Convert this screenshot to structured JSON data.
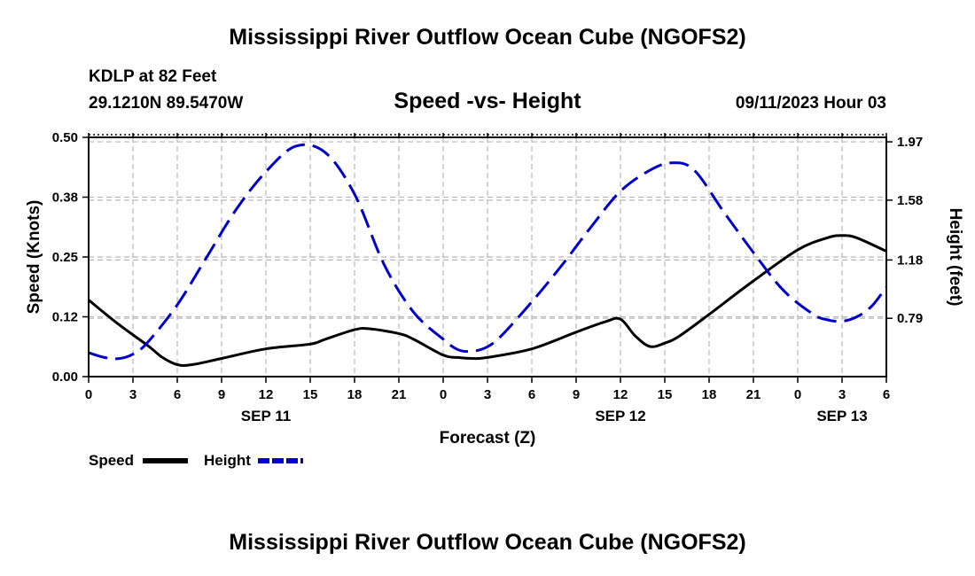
{
  "header": {
    "title": "Mississippi River Outflow Ocean Cube (NGOFS2)",
    "station": "KDLP at 82 Feet",
    "coords": "29.1210N  89.5470W",
    "subtitle": "Speed -vs- Height",
    "datetime": "09/11/2023 Hour 03"
  },
  "footer": {
    "title": "Mississippi River Outflow Ocean Cube (NGOFS2)"
  },
  "chart_data": {
    "type": "line",
    "xlabel": "Forecast (Z)",
    "ylabel_left": "Speed (Knots)",
    "ylabel_right": "Height (feet)",
    "x_range_hours": [
      0,
      54
    ],
    "x_tick_step_hours": 3,
    "x_tick_labels": [
      "0",
      "3",
      "6",
      "9",
      "12",
      "15",
      "18",
      "21",
      "0",
      "3",
      "6",
      "9",
      "12",
      "15",
      "18",
      "21",
      "0",
      "3",
      "6"
    ],
    "day_labels": [
      {
        "label": "SEP 11",
        "hour": 12
      },
      {
        "label": "SEP 12",
        "hour": 36
      },
      {
        "label": "SEP 13",
        "hour": 51
      }
    ],
    "y_left_range": [
      0,
      0.5
    ],
    "y_left_ticks": [
      {
        "value": 0.0,
        "label": "0.00"
      },
      {
        "value": 0.125,
        "label": "0.12"
      },
      {
        "value": 0.25,
        "label": "0.25"
      },
      {
        "value": 0.375,
        "label": "0.38"
      },
      {
        "value": 0.5,
        "label": "0.50"
      }
    ],
    "y_right_range": [
      0.4,
      2.0
    ],
    "y_right_ticks": [
      {
        "value": 0.79,
        "label": "0.79"
      },
      {
        "value": 1.18,
        "label": "1.18"
      },
      {
        "value": 1.58,
        "label": "1.58"
      },
      {
        "value": 1.97,
        "label": "1.97"
      }
    ],
    "grid": true,
    "legend": [
      {
        "name": "Speed",
        "color": "#000000",
        "dash": "solid"
      },
      {
        "name": "Height",
        "color": "#0000cc",
        "dash": "dashed"
      }
    ],
    "series": [
      {
        "name": "Speed",
        "axis": "left",
        "color": "#000000",
        "x": [
          0,
          2,
          4,
          5,
          6,
          7,
          9,
          12,
          15,
          16,
          18,
          19,
          21,
          22,
          24,
          25,
          26,
          27,
          30,
          33,
          35,
          36,
          37,
          38,
          39,
          40,
          42,
          45,
          48,
          50,
          51,
          52,
          54
        ],
        "y": [
          0.16,
          0.11,
          0.065,
          0.04,
          0.025,
          0.025,
          0.038,
          0.058,
          0.068,
          0.078,
          0.098,
          0.1,
          0.09,
          0.078,
          0.045,
          0.04,
          0.038,
          0.04,
          0.058,
          0.093,
          0.115,
          0.12,
          0.085,
          0.063,
          0.07,
          0.085,
          0.13,
          0.2,
          0.265,
          0.29,
          0.295,
          0.29,
          0.262
        ]
      },
      {
        "name": "Height",
        "axis": "right",
        "color": "#0000cc",
        "x": [
          0,
          1,
          2,
          3,
          4,
          6,
          8,
          10,
          12,
          14,
          16,
          18,
          20,
          22,
          24,
          25,
          26,
          27,
          28,
          30,
          32,
          34,
          36,
          38,
          39.5,
          41,
          43,
          45,
          47,
          49,
          50,
          51,
          52,
          53,
          54
        ],
        "y": [
          0.56,
          0.53,
          0.52,
          0.55,
          0.63,
          0.88,
          1.2,
          1.52,
          1.77,
          1.94,
          1.9,
          1.62,
          1.15,
          0.83,
          0.65,
          0.58,
          0.57,
          0.6,
          0.68,
          0.9,
          1.14,
          1.4,
          1.64,
          1.78,
          1.83,
          1.78,
          1.5,
          1.23,
          0.98,
          0.82,
          0.78,
          0.77,
          0.8,
          0.87,
          1.0
        ]
      }
    ]
  }
}
